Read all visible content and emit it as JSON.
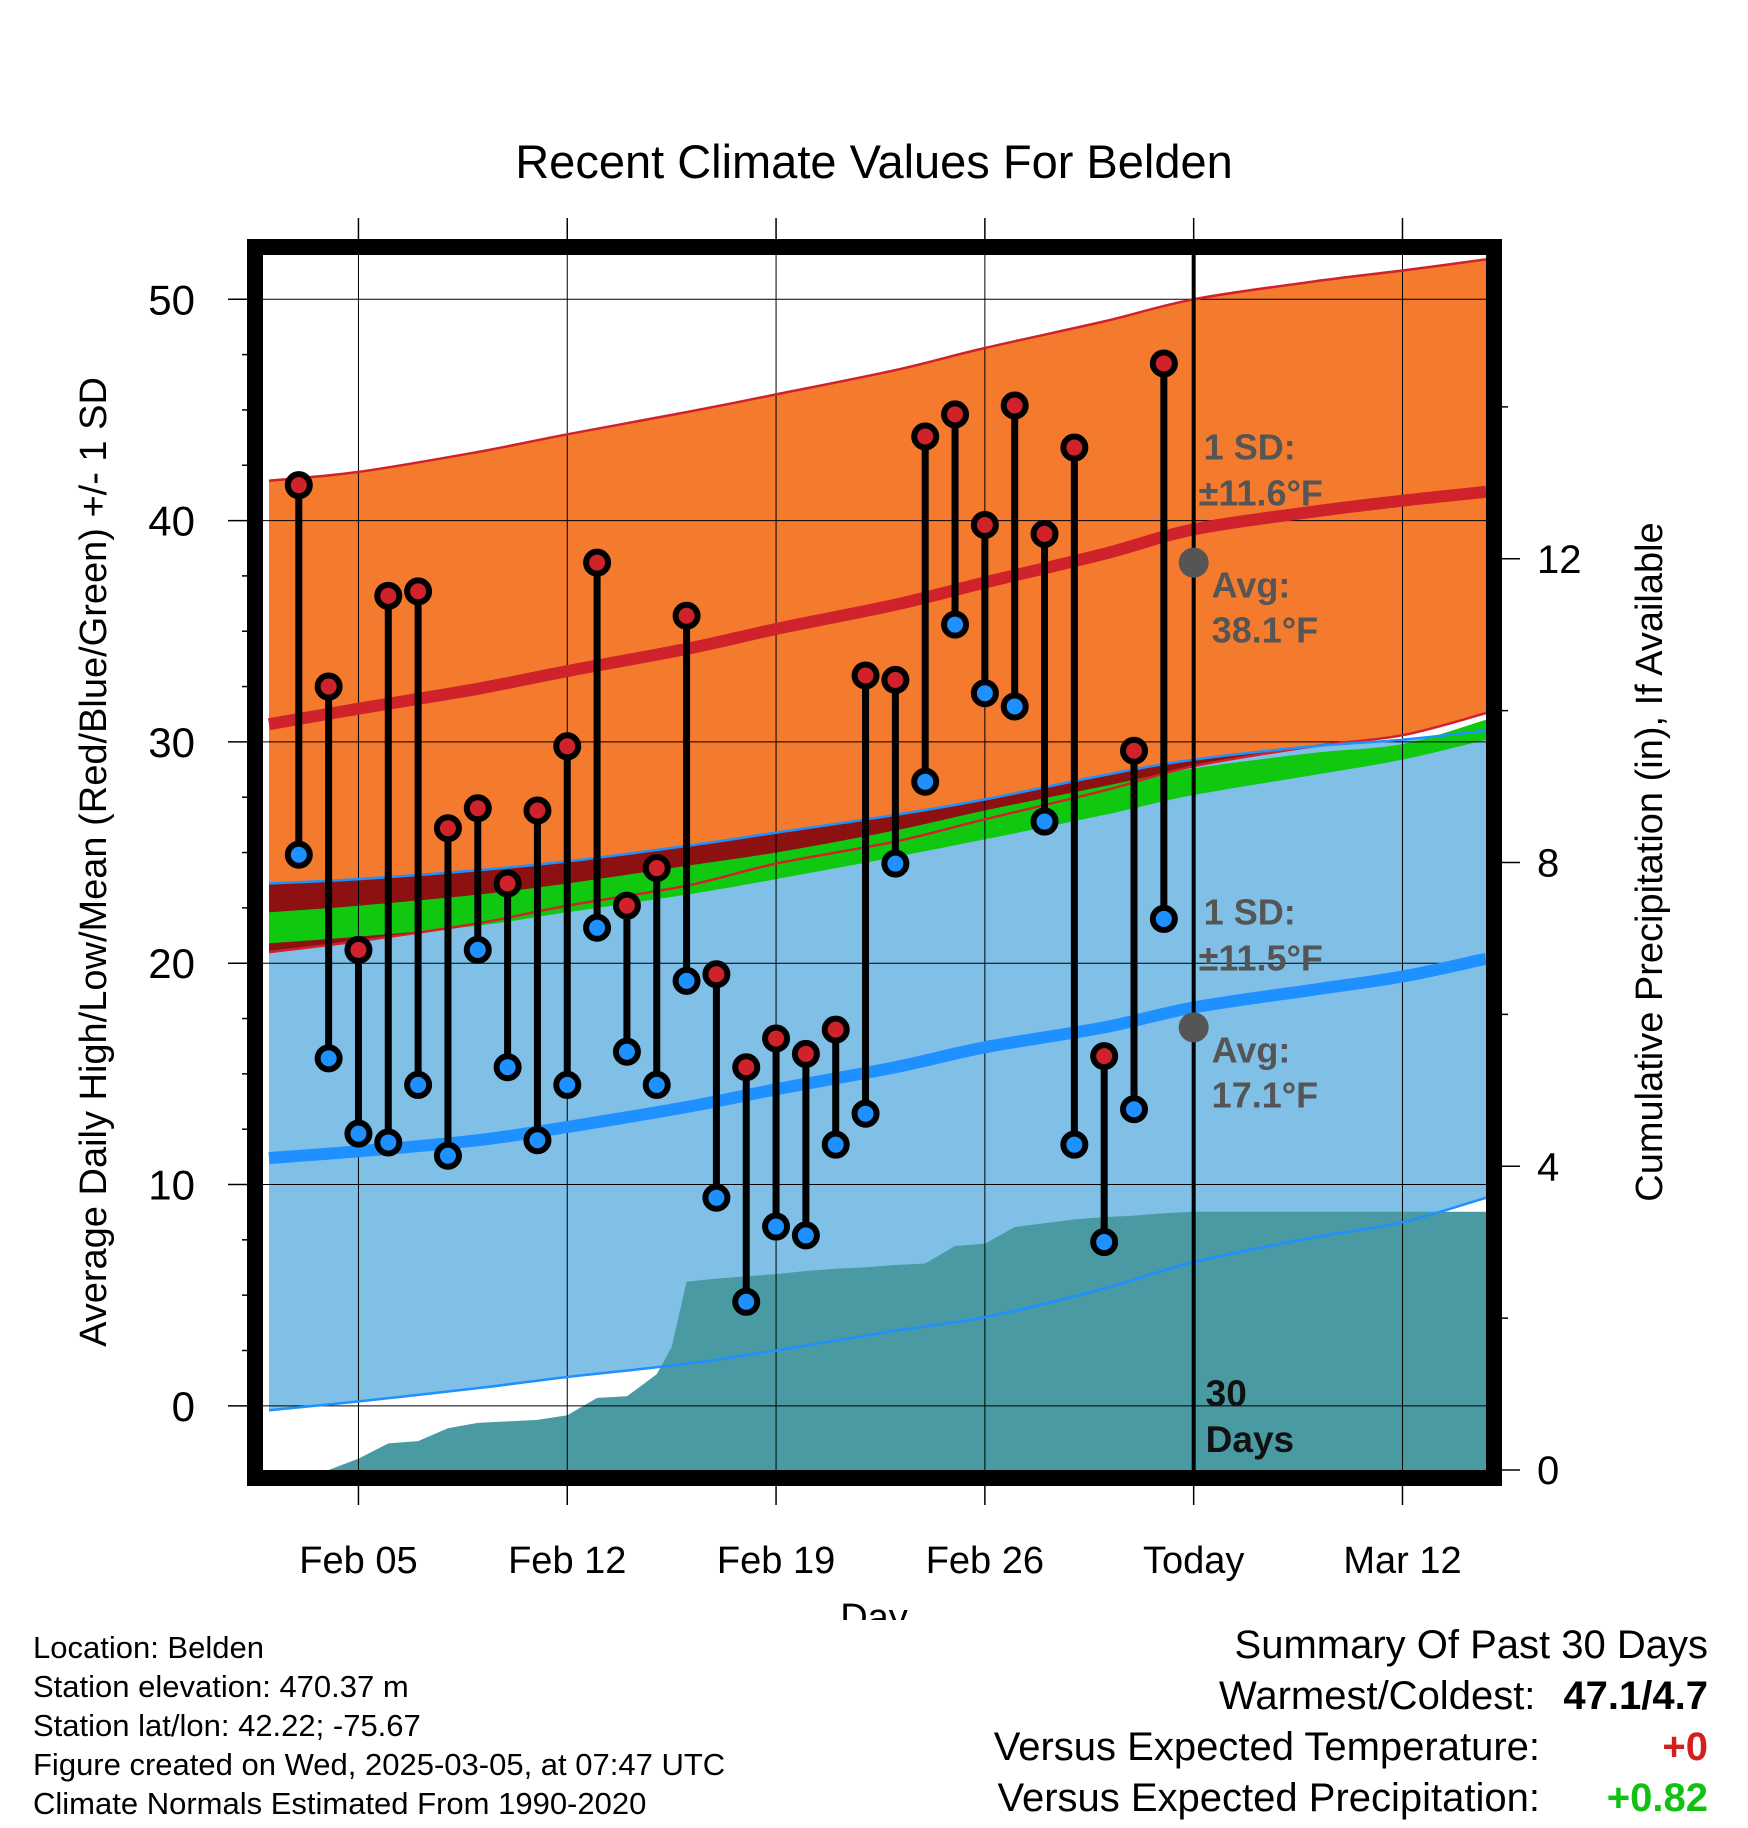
{
  "chart_data": {
    "type": "range",
    "title": "Recent Climate Values For Belden",
    "xlabel": "Day",
    "ylabel_left": "Average Daily High/Low/Mean (Red/Blue/Green) +/- 1 SD",
    "ylabel_right": "Cumulative Precipitation (in), If Available",
    "x_ticks": [
      "Feb 05",
      "Feb 12",
      "Feb 19",
      "Feb 26",
      "Today",
      "Mar 12"
    ],
    "x_tick_days": [
      5,
      12,
      19,
      26,
      33,
      40
    ],
    "xlim": [
      1.8,
      42.8
    ],
    "ylim": [
      -2.9,
      52
    ],
    "y_ticks": [
      0,
      10,
      20,
      30,
      40,
      50
    ],
    "y2lim": [
      0,
      16
    ],
    "y2_ticks": [
      0,
      4,
      8,
      12
    ],
    "today_day": 33,
    "today_label": "30\nDays",
    "normals": {
      "x": [
        2,
        5,
        9,
        12,
        16,
        19,
        23,
        26,
        30,
        33,
        37,
        40,
        42.8
      ],
      "high_mean": [
        30.8,
        31.5,
        32.4,
        33.2,
        34.2,
        35.1,
        36.2,
        37.2,
        38.5,
        39.6,
        40.4,
        40.9,
        41.3
      ],
      "high_upper": [
        41.8,
        42.2,
        43.1,
        43.9,
        44.9,
        45.7,
        46.8,
        47.8,
        49.0,
        50.0,
        50.8,
        51.3,
        51.8
      ],
      "high_lower": [
        20.5,
        21.0,
        21.8,
        22.6,
        23.5,
        24.5,
        25.5,
        26.5,
        27.8,
        28.9,
        29.8,
        30.3,
        31.3
      ],
      "low_mean": [
        11.2,
        11.5,
        12.0,
        12.6,
        13.5,
        14.3,
        15.3,
        16.2,
        17.1,
        18.0,
        18.8,
        19.4,
        20.2
      ],
      "low_upper": [
        23.6,
        23.8,
        24.2,
        24.6,
        25.3,
        25.9,
        26.7,
        27.4,
        28.5,
        29.2,
        29.8,
        30.1,
        30.5
      ],
      "low_lower": [
        -0.2,
        0.2,
        0.8,
        1.3,
        1.9,
        2.5,
        3.4,
        4.0,
        5.3,
        6.5,
        7.6,
        8.3,
        9.4
      ],
      "mean_upper": [
        22.3,
        22.6,
        23.1,
        23.6,
        24.4,
        25.0,
        26.0,
        26.9,
        28.0,
        28.8,
        29.5,
        29.9,
        31.0
      ],
      "mean_lower": [
        20.9,
        21.2,
        21.7,
        22.3,
        23.1,
        23.8,
        24.8,
        25.6,
        26.7,
        27.6,
        28.5,
        29.2,
        30.1
      ]
    },
    "highs": [
      41.6,
      32.5,
      20.6,
      36.6,
      36.8,
      26.1,
      27.0,
      23.6,
      26.9,
      29.8,
      38.1,
      22.6,
      24.3,
      35.7,
      19.5,
      15.3,
      16.6,
      15.9,
      17.0,
      33.0,
      32.8,
      43.8,
      44.8,
      39.8,
      45.2,
      39.4,
      43.3,
      15.8,
      29.6,
      47.1
    ],
    "lows": [
      24.9,
      15.7,
      12.3,
      11.9,
      14.5,
      11.3,
      20.6,
      15.3,
      12.0,
      14.5,
      21.6,
      16.0,
      14.5,
      19.2,
      9.4,
      4.7,
      8.1,
      7.7,
      11.8,
      13.2,
      24.5,
      28.2,
      35.3,
      32.2,
      31.6,
      26.4,
      11.8,
      7.4,
      13.4,
      22.0
    ],
    "precip_day": [
      4,
      5,
      6,
      7,
      8,
      9,
      10,
      11,
      12,
      13,
      14,
      15,
      15.5,
      16,
      17,
      18,
      19,
      20,
      21,
      22,
      23,
      24,
      25,
      26,
      27,
      28,
      29,
      30,
      31,
      32,
      33,
      42.8
    ],
    "precip_cum": [
      0.0,
      0.15,
      0.35,
      0.38,
      0.55,
      0.62,
      0.64,
      0.66,
      0.72,
      0.95,
      0.97,
      1.26,
      1.62,
      2.48,
      2.52,
      2.55,
      2.58,
      2.62,
      2.65,
      2.67,
      2.7,
      2.72,
      2.95,
      2.98,
      3.2,
      3.25,
      3.3,
      3.33,
      3.35,
      3.38,
      3.4,
      3.4
    ],
    "annotations": {
      "high_sd": "1 SD:",
      "high_sd_value": "±11.6°F",
      "high_avg": "Avg:",
      "high_avg_value": "38.1°F",
      "low_sd": "1 SD:",
      "low_sd_value": "±11.5°F",
      "low_avg": "Avg:",
      "low_avg_value": "17.1°F",
      "high_avg_num": 38.1,
      "low_avg_num": 17.1
    },
    "colors": {
      "high_band": "#f47b2e",
      "high_line": "#d0222a",
      "low_band": "#80bfe6",
      "low_line": "#1e90ff",
      "mean_band": "#10c810",
      "overlap": "#8e1111",
      "precip": "#4a9aa3",
      "dot_high": "#d0222a",
      "dot_low": "#1e90ff",
      "annot": "#555555"
    }
  },
  "info": {
    "location": "Location: Belden",
    "elevation": "Station elevation: 470.37 m",
    "latlon": "Station lat/lon: 42.22; -75.67",
    "created": "Figure created on Wed, 2025-03-05, at 07:47 UTC",
    "normals": "Climate Normals Estimated From 1990-2020"
  },
  "summary": {
    "title": "Summary Of Past 30 Days",
    "warm_cold_label": "Warmest/Coldest:",
    "warm_cold_value": "47.1/4.7",
    "temp_label": "Versus Expected Temperature:",
    "temp_value": "+0",
    "precip_label": "Versus Expected Precipitation:",
    "precip_value": "+0.82"
  }
}
